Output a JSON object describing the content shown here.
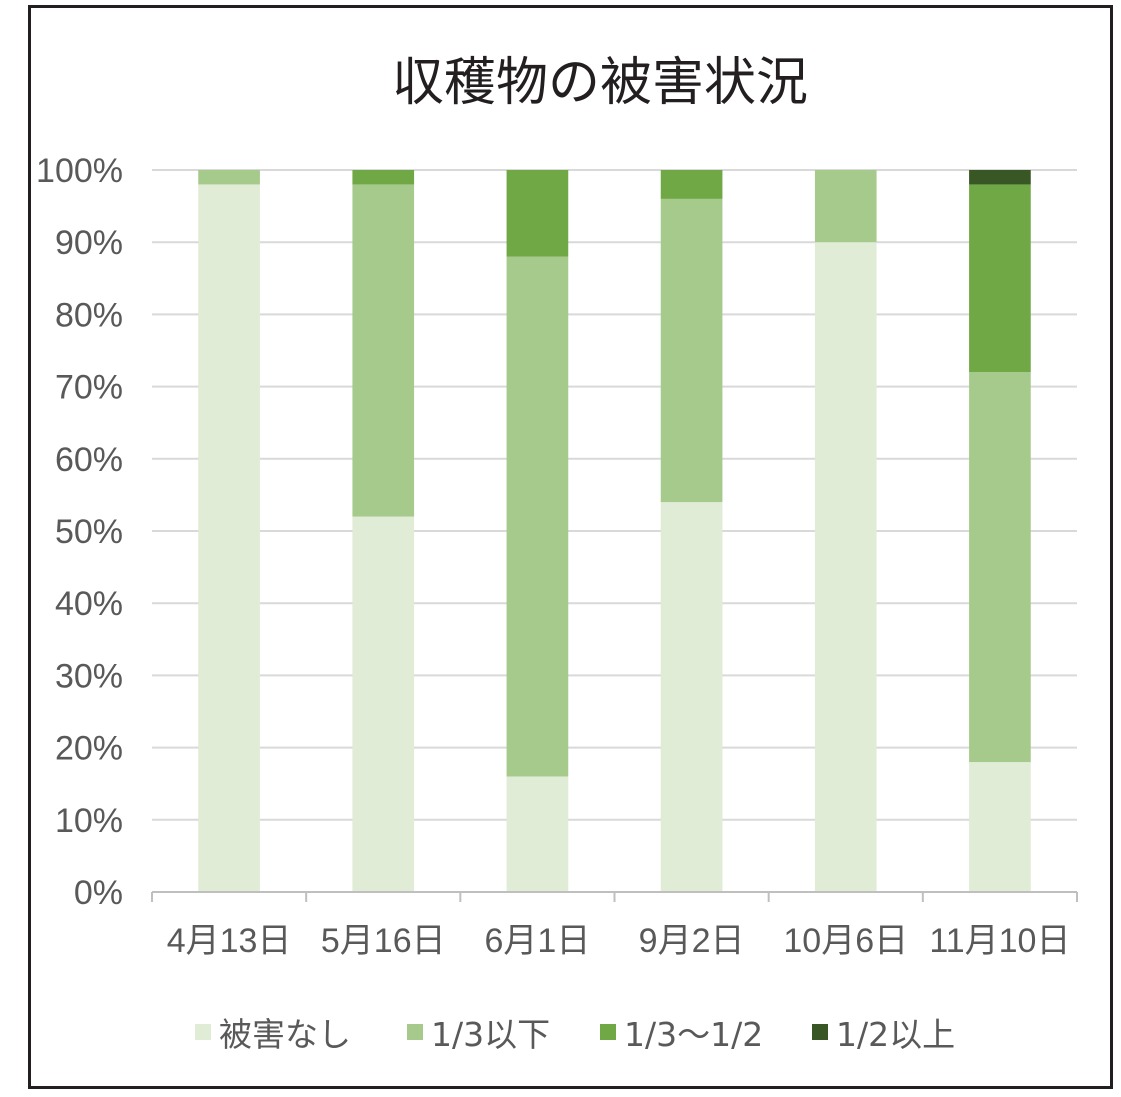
{
  "chart_data": {
    "type": "bar",
    "stacked": "percent",
    "title": "収穫物の被害状況",
    "xlabel": "",
    "ylabel": "",
    "categories": [
      "4月13日",
      "5月16日",
      "6月1日",
      "9月2日",
      "10月6日",
      "11月10日"
    ],
    "series": [
      {
        "name": "被害なし",
        "color": "#e0ecd6",
        "values": [
          98,
          52,
          16,
          54,
          90,
          18
        ]
      },
      {
        "name": "1/3以下",
        "color": "#a6ca8b",
        "values": [
          2,
          46,
          72,
          42,
          10,
          54
        ]
      },
      {
        "name": "1/3〜1/2",
        "color": "#70a845",
        "values": [
          0,
          2,
          12,
          4,
          0,
          26
        ]
      },
      {
        "name": "1/2以上",
        "color": "#385724",
        "values": [
          0,
          0,
          0,
          0,
          0,
          2
        ]
      }
    ],
    "ylim": [
      0,
      100
    ],
    "yticks": [
      "0%",
      "10%",
      "20%",
      "30%",
      "40%",
      "50%",
      "60%",
      "70%",
      "80%",
      "90%",
      "100%"
    ],
    "grid": true,
    "legend": "bottom"
  },
  "colors": {
    "grid": "#d9d9d9",
    "axis": "#bfbfbf",
    "tick_text": "#595959",
    "title_text": "#231f20",
    "frame": "#231f20"
  }
}
